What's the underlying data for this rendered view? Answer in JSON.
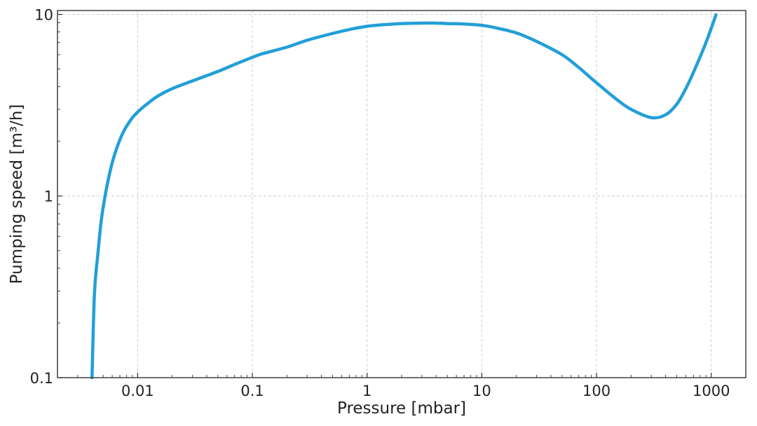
{
  "chart_data": {
    "type": "line",
    "title": "",
    "xlabel": "Pressure [mbar]",
    "ylabel": "Pumping speed [m³/h]",
    "x_scale": "log",
    "y_scale": "log",
    "xlim": [
      0.002,
      2000
    ],
    "ylim": [
      0.1,
      10.5
    ],
    "x_ticks": [
      {
        "value": 0.01,
        "label": "0.01"
      },
      {
        "value": 0.1,
        "label": "0.1"
      },
      {
        "value": 1,
        "label": "1"
      },
      {
        "value": 10,
        "label": "10"
      },
      {
        "value": 100,
        "label": "100"
      },
      {
        "value": 1000,
        "label": "1000"
      }
    ],
    "y_ticks": [
      {
        "value": 0.1,
        "label": "0.1"
      },
      {
        "value": 1,
        "label": "1"
      },
      {
        "value": 10,
        "label": "10"
      }
    ],
    "grid": true,
    "series": [
      {
        "color": "#229fd8",
        "x": [
          0.004,
          0.0042,
          0.0045,
          0.0048,
          0.0052,
          0.0058,
          0.0065,
          0.0075,
          0.0088,
          0.01,
          0.012,
          0.015,
          0.02,
          0.03,
          0.05,
          0.07,
          0.1,
          0.12,
          0.2,
          0.3,
          0.5,
          0.7,
          1,
          1.5,
          2,
          3,
          4,
          5,
          7,
          10,
          13,
          20,
          30,
          50,
          70,
          100,
          150,
          200,
          300,
          400,
          500,
          600,
          700,
          900,
          1100
        ],
        "y": [
          0.1,
          0.29,
          0.48,
          0.72,
          1.0,
          1.4,
          1.8,
          2.25,
          2.65,
          2.9,
          3.2,
          3.55,
          3.9,
          4.3,
          4.85,
          5.3,
          5.8,
          6.05,
          6.6,
          7.2,
          7.85,
          8.25,
          8.6,
          8.8,
          8.9,
          8.95,
          8.95,
          8.9,
          8.85,
          8.7,
          8.45,
          7.9,
          7.1,
          6.0,
          5.1,
          4.2,
          3.4,
          3.0,
          2.7,
          2.8,
          3.2,
          3.9,
          4.8,
          7.0,
          9.95
        ]
      }
    ]
  }
}
